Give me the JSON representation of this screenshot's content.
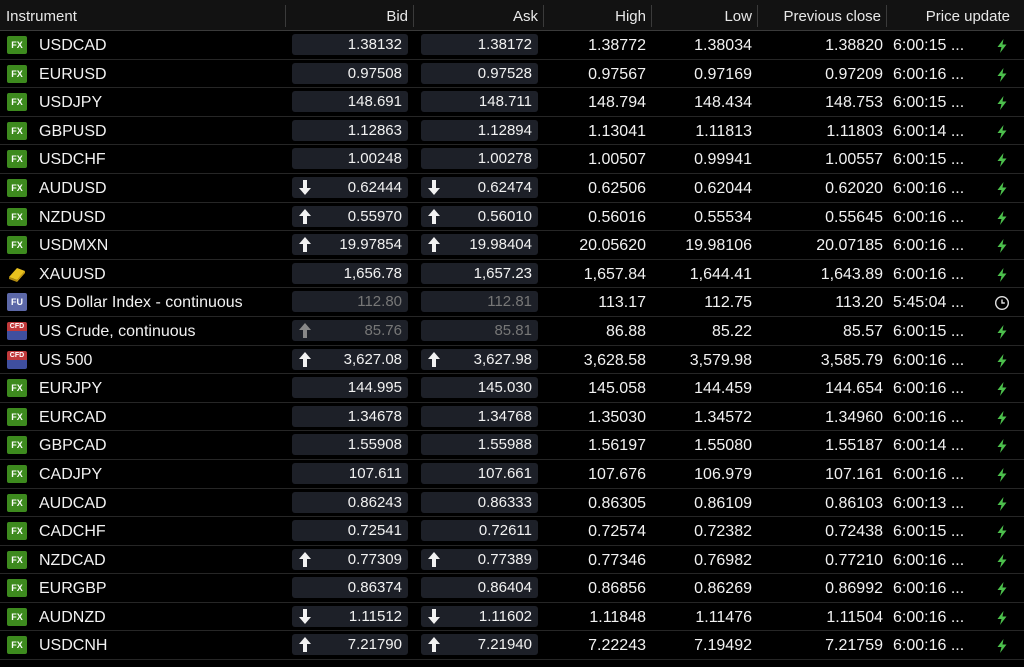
{
  "columns": [
    "Instrument",
    "Bid",
    "Ask",
    "High",
    "Low",
    "Previous close",
    "Price update"
  ],
  "colors": {
    "fx_badge": "#3d8a1e",
    "cell_bg": "#1d2028",
    "bolt": "#4cc04c",
    "stale_text": "#777777"
  },
  "rows": [
    {
      "badge": "fx",
      "badge_text": "FX",
      "name": "USDCAD",
      "bid": "1.38132",
      "ask": "1.38172",
      "high": "1.38772",
      "low": "1.38034",
      "prev_close": "1.38820",
      "time": "6:00:15 ...",
      "arrow": "none",
      "icon": "bolt-icon"
    },
    {
      "badge": "fx",
      "badge_text": "FX",
      "name": "EURUSD",
      "bid": "0.97508",
      "ask": "0.97528",
      "high": "0.97567",
      "low": "0.97169",
      "prev_close": "0.97209",
      "time": "6:00:16 ...",
      "arrow": "none",
      "icon": "bolt-icon"
    },
    {
      "badge": "fx",
      "badge_text": "FX",
      "name": "USDJPY",
      "bid": "148.691",
      "ask": "148.711",
      "high": "148.794",
      "low": "148.434",
      "prev_close": "148.753",
      "time": "6:00:15 ...",
      "arrow": "none",
      "icon": "bolt-icon"
    },
    {
      "badge": "fx",
      "badge_text": "FX",
      "name": "GBPUSD",
      "bid": "1.12863",
      "ask": "1.12894",
      "high": "1.13041",
      "low": "1.11813",
      "prev_close": "1.11803",
      "time": "6:00:14 ...",
      "arrow": "none",
      "icon": "bolt-icon"
    },
    {
      "badge": "fx",
      "badge_text": "FX",
      "name": "USDCHF",
      "bid": "1.00248",
      "ask": "1.00278",
      "high": "1.00507",
      "low": "0.99941",
      "prev_close": "1.00557",
      "time": "6:00:15 ...",
      "arrow": "none",
      "icon": "bolt-icon"
    },
    {
      "badge": "fx",
      "badge_text": "FX",
      "name": "AUDUSD",
      "bid": "0.62444",
      "ask": "0.62474",
      "high": "0.62506",
      "low": "0.62044",
      "prev_close": "0.62020",
      "time": "6:00:16 ...",
      "arrow": "down",
      "icon": "bolt-icon"
    },
    {
      "badge": "fx",
      "badge_text": "FX",
      "name": "NZDUSD",
      "bid": "0.55970",
      "ask": "0.56010",
      "high": "0.56016",
      "low": "0.55534",
      "prev_close": "0.55645",
      "time": "6:00:16 ...",
      "arrow": "up",
      "icon": "bolt-icon"
    },
    {
      "badge": "fx",
      "badge_text": "FX",
      "name": "USDMXN",
      "bid": "19.97854",
      "ask": "19.98404",
      "high": "20.05620",
      "low": "19.98106",
      "prev_close": "20.07185",
      "time": "6:00:16 ...",
      "arrow": "up",
      "icon": "bolt-icon"
    },
    {
      "badge": "metal",
      "badge_text": "",
      "name": "XAUUSD",
      "bid": "1,656.78",
      "ask": "1,657.23",
      "high": "1,657.84",
      "low": "1,644.41",
      "prev_close": "1,643.89",
      "time": "6:00:16 ...",
      "arrow": "none",
      "icon": "bolt-icon"
    },
    {
      "badge": "fu",
      "badge_text": "FU",
      "name": "US Dollar Index - continuous",
      "bid": "112.80",
      "ask": "112.81",
      "high": "113.17",
      "low": "112.75",
      "prev_close": "113.20",
      "time": "5:45:04 ...",
      "arrow": "none",
      "icon": "clock-icon",
      "stale": true
    },
    {
      "badge": "cfd",
      "badge_text": "CFD",
      "name": "US Crude, continuous",
      "bid": "85.76",
      "ask": "85.81",
      "high": "86.88",
      "low": "85.22",
      "prev_close": "85.57",
      "time": "6:00:15 ...",
      "arrow": "up-dim",
      "icon": "bolt-icon",
      "stale": true
    },
    {
      "badge": "cfd",
      "badge_text": "CFD",
      "name": "US 500",
      "bid": "3,627.08",
      "ask": "3,627.98",
      "high": "3,628.58",
      "low": "3,579.98",
      "prev_close": "3,585.79",
      "time": "6:00:16 ...",
      "arrow": "up",
      "icon": "bolt-icon"
    },
    {
      "badge": "fx",
      "badge_text": "FX",
      "name": "EURJPY",
      "bid": "144.995",
      "ask": "145.030",
      "high": "145.058",
      "low": "144.459",
      "prev_close": "144.654",
      "time": "6:00:16 ...",
      "arrow": "none",
      "icon": "bolt-icon"
    },
    {
      "badge": "fx",
      "badge_text": "FX",
      "name": "EURCAD",
      "bid": "1.34678",
      "ask": "1.34768",
      "high": "1.35030",
      "low": "1.34572",
      "prev_close": "1.34960",
      "time": "6:00:16 ...",
      "arrow": "none",
      "icon": "bolt-icon"
    },
    {
      "badge": "fx",
      "badge_text": "FX",
      "name": "GBPCAD",
      "bid": "1.55908",
      "ask": "1.55988",
      "high": "1.56197",
      "low": "1.55080",
      "prev_close": "1.55187",
      "time": "6:00:14 ...",
      "arrow": "none",
      "icon": "bolt-icon"
    },
    {
      "badge": "fx",
      "badge_text": "FX",
      "name": "CADJPY",
      "bid": "107.611",
      "ask": "107.661",
      "high": "107.676",
      "low": "106.979",
      "prev_close": "107.161",
      "time": "6:00:16 ...",
      "arrow": "none",
      "icon": "bolt-icon"
    },
    {
      "badge": "fx",
      "badge_text": "FX",
      "name": "AUDCAD",
      "bid": "0.86243",
      "ask": "0.86333",
      "high": "0.86305",
      "low": "0.86109",
      "prev_close": "0.86103",
      "time": "6:00:13 ...",
      "arrow": "none",
      "icon": "bolt-icon"
    },
    {
      "badge": "fx",
      "badge_text": "FX",
      "name": "CADCHF",
      "bid": "0.72541",
      "ask": "0.72611",
      "high": "0.72574",
      "low": "0.72382",
      "prev_close": "0.72438",
      "time": "6:00:15 ...",
      "arrow": "none",
      "icon": "bolt-icon"
    },
    {
      "badge": "fx",
      "badge_text": "FX",
      "name": "NZDCAD",
      "bid": "0.77309",
      "ask": "0.77389",
      "high": "0.77346",
      "low": "0.76982",
      "prev_close": "0.77210",
      "time": "6:00:16 ...",
      "arrow": "up",
      "icon": "bolt-icon"
    },
    {
      "badge": "fx",
      "badge_text": "FX",
      "name": "EURGBP",
      "bid": "0.86374",
      "ask": "0.86404",
      "high": "0.86856",
      "low": "0.86269",
      "prev_close": "0.86992",
      "time": "6:00:16 ...",
      "arrow": "none",
      "icon": "bolt-icon"
    },
    {
      "badge": "fx",
      "badge_text": "FX",
      "name": "AUDNZD",
      "bid": "1.11512",
      "ask": "1.11602",
      "high": "1.11848",
      "low": "1.11476",
      "prev_close": "1.11504",
      "time": "6:00:16 ...",
      "arrow": "down",
      "icon": "bolt-icon"
    },
    {
      "badge": "fx",
      "badge_text": "FX",
      "name": "USDCNH",
      "bid": "7.21790",
      "ask": "7.21940",
      "high": "7.22243",
      "low": "7.19492",
      "prev_close": "7.21759",
      "time": "6:00:16 ...",
      "arrow": "up",
      "icon": "bolt-icon"
    }
  ]
}
